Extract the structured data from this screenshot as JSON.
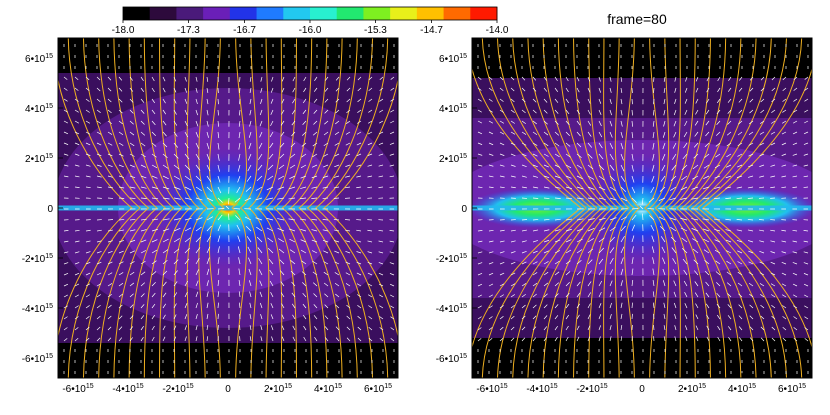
{
  "figure": {
    "frame_label": "frame=80"
  },
  "chart_data": [
    {
      "type": "heatmap",
      "panel": "left",
      "title": "",
      "xlabel": "",
      "ylabel": "",
      "xlim": [
        -6800000000000000.0,
        6800000000000000.0
      ],
      "ylim": [
        -6800000000000000.0,
        6800000000000000.0
      ],
      "x_ticks": [
        -6000000000000000.0,
        -4000000000000000.0,
        -2000000000000000.0,
        0,
        2000000000000000.0,
        4000000000000000.0,
        6000000000000000.0
      ],
      "y_ticks": [
        -6000000000000000.0,
        -4000000000000000.0,
        -2000000000000000.0,
        0,
        2000000000000000.0,
        4000000000000000.0,
        6000000000000000.0
      ],
      "tick_labels": [
        "-6•10",
        "-4•10",
        "-2•10",
        "0",
        "2•10",
        "4•10",
        "6•10"
      ],
      "tick_exponent": "15",
      "overlays": [
        "velocity-vectors (white)",
        "magnetic-field-lines (orange)"
      ],
      "grid": false
    },
    {
      "type": "heatmap",
      "panel": "right",
      "title": "frame=80",
      "xlabel": "",
      "ylabel": "",
      "xlim": [
        -6800000000000000.0,
        6800000000000000.0
      ],
      "ylim": [
        -6800000000000000.0,
        6800000000000000.0
      ],
      "x_ticks": [
        -6000000000000000.0,
        -4000000000000000.0,
        -2000000000000000.0,
        0,
        2000000000000000.0,
        4000000000000000.0,
        6000000000000000.0
      ],
      "y_ticks": [
        -6000000000000000.0,
        -4000000000000000.0,
        -2000000000000000.0,
        0,
        2000000000000000.0,
        4000000000000000.0,
        6000000000000000.0
      ],
      "tick_labels": [
        "-6•10",
        "-4•10",
        "-2•10",
        "0",
        "2•10",
        "4•10",
        "6•10"
      ],
      "tick_exponent": "15",
      "overlays": [
        "velocity-vectors (white)",
        "magnetic-field-lines (orange)"
      ],
      "grid": false
    }
  ],
  "colorbar": {
    "range": [
      -18.0,
      -14.0
    ],
    "tick_values": [
      -18.0,
      -17.3,
      -16.7,
      -16.0,
      -15.3,
      -14.7,
      -14.0
    ],
    "tick_labels": [
      "-18.0",
      "-17.3",
      "-16.7",
      "-16.0",
      "-15.3",
      "-14.7",
      "-14.0"
    ],
    "colors": [
      "#000000",
      "#2d0a3c",
      "#4a1a7a",
      "#6a1fb8",
      "#2233e8",
      "#1f7bff",
      "#22c8f0",
      "#28f0d0",
      "#22e870",
      "#7ef020",
      "#e8f01a",
      "#ffc000",
      "#ff6a00",
      "#ff1a00"
    ]
  },
  "colors": {
    "background": "#000000",
    "field_lines": "#f0b020",
    "vectors": "#ffffff",
    "purple_outer": "#3a0f5e",
    "purple_mid": "#561a8a",
    "purple_inner": "#6d26b0"
  }
}
